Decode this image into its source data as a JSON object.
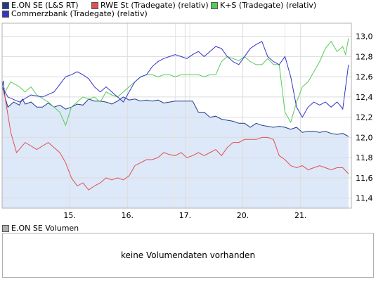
{
  "legend": [
    {
      "label": "E.ON SE (L&S RT)",
      "color": "#1f3a8a"
    },
    {
      "label": "RWE St (Tradegate) (relativ)",
      "color": "#e05050"
    },
    {
      "label": "K+S (Tradegate) (relativ)",
      "color": "#55cc55"
    },
    {
      "label": "Commerzbank (Tradegate) (relativ)",
      "color": "#3333cc"
    }
  ],
  "volume": {
    "title": "E.ON SE Volumen",
    "swatch_color": "#b0b0b0",
    "message": "keine Volumendaten vorhanden"
  },
  "chart_data": {
    "type": "line",
    "x_ticks": [
      "15.",
      "16.",
      "17.",
      "20.",
      "21."
    ],
    "y_ticks": [
      "13,0",
      "12,8",
      "12,6",
      "12,4",
      "12,2",
      "12,0",
      "11,8",
      "11,6",
      "11,4"
    ],
    "ylim": [
      11.3,
      13.13
    ],
    "grid": true,
    "legend_position": "top",
    "area_fill_series": "E.ON SE (L&S RT)",
    "area_fill_color": "#dde8f8",
    "series": [
      {
        "name": "E.ON SE (L&S RT)",
        "color": "#1f3a8a",
        "x": [
          0,
          0.02,
          0.05,
          0.1,
          0.2,
          0.3,
          0.35,
          0.4,
          0.5,
          0.6,
          0.7,
          0.8,
          0.9,
          1.0,
          1.1,
          1.2,
          1.3,
          1.4,
          1.5,
          1.6,
          1.7,
          1.8,
          1.9,
          2.0,
          2.1,
          2.2,
          2.3,
          2.4,
          2.5,
          2.6,
          2.7,
          2.8,
          2.9,
          3.0,
          3.1,
          3.2,
          3.3,
          3.4,
          3.5,
          3.6,
          3.7,
          3.8,
          3.9,
          4.0,
          4.1,
          4.2,
          4.3,
          4.4,
          4.5,
          4.6,
          4.7,
          4.8,
          4.9,
          5.0,
          5.1,
          5.2,
          5.3,
          5.4,
          5.5,
          5.6,
          5.7,
          5.8,
          5.9,
          6.0
        ],
        "y": [
          12.5,
          12.56,
          12.4,
          12.3,
          12.35,
          12.32,
          12.38,
          12.33,
          12.35,
          12.3,
          12.3,
          12.34,
          12.3,
          12.32,
          12.28,
          12.3,
          12.33,
          12.32,
          12.38,
          12.36,
          12.36,
          12.35,
          12.33,
          12.36,
          12.4,
          12.37,
          12.38,
          12.36,
          12.37,
          12.36,
          12.37,
          12.34,
          12.35,
          12.36,
          12.36,
          12.36,
          12.36,
          12.25,
          12.25,
          12.2,
          12.21,
          12.18,
          12.17,
          12.16,
          12.14,
          12.14,
          12.1,
          12.14,
          12.12,
          12.11,
          12.1,
          12.11,
          12.1,
          12.08,
          12.1,
          12.05,
          12.06,
          12.06,
          12.05,
          12.06,
          12.04,
          12.03,
          12.04,
          12.01
        ]
      },
      {
        "name": "RWE St (Tradegate) (relativ)",
        "color": "#e05050",
        "x": [
          0,
          0.05,
          0.15,
          0.25,
          0.4,
          0.6,
          0.8,
          1.0,
          1.1,
          1.2,
          1.3,
          1.4,
          1.5,
          1.6,
          1.7,
          1.8,
          1.9,
          2.0,
          2.1,
          2.2,
          2.3,
          2.4,
          2.5,
          2.6,
          2.7,
          2.8,
          2.9,
          3.0,
          3.1,
          3.2,
          3.3,
          3.4,
          3.5,
          3.6,
          3.7,
          3.8,
          3.9,
          4.0,
          4.1,
          4.2,
          4.3,
          4.4,
          4.5,
          4.6,
          4.7,
          4.8,
          4.9,
          5.0,
          5.1,
          5.2,
          5.3,
          5.4,
          5.5,
          5.6,
          5.7,
          5.8,
          5.9,
          6.0
        ],
        "y": [
          12.5,
          12.4,
          12.05,
          11.85,
          11.95,
          11.88,
          11.95,
          11.85,
          11.75,
          11.6,
          11.52,
          11.55,
          11.48,
          11.52,
          11.55,
          11.6,
          11.58,
          11.6,
          11.58,
          11.62,
          11.72,
          11.75,
          11.78,
          11.78,
          11.8,
          11.85,
          11.83,
          11.82,
          11.85,
          11.8,
          11.82,
          11.85,
          11.82,
          11.85,
          11.88,
          11.82,
          11.9,
          11.95,
          11.95,
          11.98,
          11.98,
          11.98,
          12.0,
          12.0,
          11.98,
          11.82,
          11.78,
          11.72,
          11.7,
          11.72,
          11.68,
          11.7,
          11.72,
          11.7,
          11.68,
          11.7,
          11.7,
          11.64
        ]
      },
      {
        "name": "K+S (Tradegate) (relativ)",
        "color": "#55cc55",
        "x": [
          0,
          0.05,
          0.15,
          0.3,
          0.4,
          0.5,
          0.6,
          0.8,
          1.0,
          1.1,
          1.2,
          1.3,
          1.4,
          1.5,
          1.6,
          1.7,
          1.8,
          1.9,
          2.0,
          2.1,
          2.2,
          2.3,
          2.4,
          2.5,
          2.6,
          2.7,
          2.8,
          2.9,
          3.0,
          3.1,
          3.2,
          3.3,
          3.4,
          3.5,
          3.6,
          3.7,
          3.8,
          3.9,
          4.0,
          4.1,
          4.2,
          4.3,
          4.4,
          4.5,
          4.6,
          4.7,
          4.8,
          4.9,
          5.0,
          5.1,
          5.2,
          5.3,
          5.4,
          5.5,
          5.6,
          5.7,
          5.8,
          5.9,
          5.95,
          6.0
        ],
        "y": [
          12.5,
          12.45,
          12.55,
          12.5,
          12.45,
          12.5,
          12.42,
          12.35,
          12.25,
          12.12,
          12.3,
          12.35,
          12.4,
          12.38,
          12.4,
          12.35,
          12.45,
          12.42,
          12.4,
          12.45,
          12.5,
          12.55,
          12.6,
          12.62,
          12.62,
          12.6,
          12.62,
          12.62,
          12.6,
          12.62,
          12.62,
          12.62,
          12.62,
          12.6,
          12.62,
          12.62,
          12.75,
          12.8,
          12.78,
          12.76,
          12.8,
          12.75,
          12.72,
          12.72,
          12.78,
          12.72,
          12.72,
          12.25,
          12.15,
          12.35,
          12.5,
          12.55,
          12.65,
          12.75,
          12.88,
          12.95,
          12.85,
          12.9,
          12.82,
          12.98
        ]
      },
      {
        "name": "Commerzbank (Tradegate) (relativ)",
        "color": "#3333cc",
        "x": [
          0,
          0.1,
          0.3,
          0.5,
          0.7,
          0.9,
          1.1,
          1.2,
          1.3,
          1.4,
          1.5,
          1.6,
          1.7,
          1.8,
          1.9,
          2.0,
          2.1,
          2.2,
          2.3,
          2.4,
          2.5,
          2.6,
          2.7,
          2.8,
          2.9,
          3.0,
          3.1,
          3.2,
          3.3,
          3.4,
          3.5,
          3.6,
          3.7,
          3.8,
          3.9,
          4.0,
          4.1,
          4.2,
          4.3,
          4.4,
          4.5,
          4.6,
          4.7,
          4.8,
          4.9,
          5.0,
          5.1,
          5.2,
          5.3,
          5.4,
          5.5,
          5.6,
          5.7,
          5.8,
          5.85,
          5.9,
          5.95,
          6.0
        ],
        "y": [
          12.5,
          12.4,
          12.35,
          12.42,
          12.4,
          12.45,
          12.6,
          12.62,
          12.65,
          12.62,
          12.58,
          12.5,
          12.45,
          12.5,
          12.45,
          12.4,
          12.35,
          12.45,
          12.55,
          12.6,
          12.62,
          12.7,
          12.75,
          12.78,
          12.8,
          12.82,
          12.8,
          12.78,
          12.82,
          12.85,
          12.8,
          12.85,
          12.9,
          12.88,
          12.8,
          12.75,
          12.72,
          12.8,
          12.88,
          12.92,
          12.95,
          12.8,
          12.75,
          12.72,
          12.8,
          12.6,
          12.3,
          12.2,
          12.3,
          12.35,
          12.32,
          12.35,
          12.3,
          12.35,
          12.32,
          12.28,
          12.5,
          12.72
        ]
      }
    ]
  }
}
